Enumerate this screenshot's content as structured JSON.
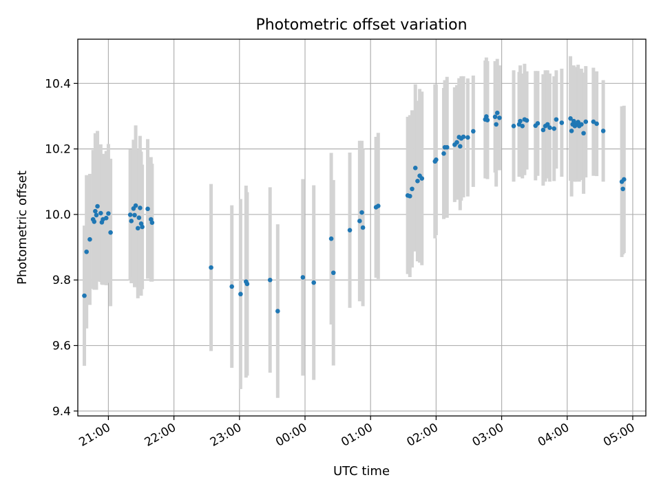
{
  "chart_data": {
    "type": "scatter",
    "title": "Photometric offset variation",
    "xlabel": "UTC time",
    "ylabel": "Photometric offset",
    "xlim": [
      "20:32",
      "05:12"
    ],
    "ylim": [
      9.385,
      10.535
    ],
    "grid": true,
    "x_ticks": [
      "21:00",
      "22:00",
      "23:00",
      "00:00",
      "01:00",
      "02:00",
      "03:00",
      "04:00",
      "05:00"
    ],
    "y_ticks": [
      "9.4",
      "9.6",
      "9.8",
      "10.0",
      "10.2",
      "10.4"
    ],
    "colors": {
      "marker": "#1f77b4",
      "errorbar": "#d3d3d3",
      "grid": "#b0b0b0"
    },
    "series": [
      {
        "points": [
          {
            "t": "20:38",
            "y": 9.752,
            "err": 0.214
          },
          {
            "t": "20:40",
            "y": 9.886,
            "err": 0.234
          },
          {
            "t": "20:43",
            "y": 9.924,
            "err": 0.2
          },
          {
            "t": "20:46",
            "y": 9.985,
            "err": 0.212
          },
          {
            "t": "20:47",
            "y": 9.978,
            "err": 0.208
          },
          {
            "t": "20:48",
            "y": 10.01,
            "err": 0.238
          },
          {
            "t": "20:49",
            "y": 9.998,
            "err": 0.228
          },
          {
            "t": "20:50",
            "y": 10.025,
            "err": 0.23
          },
          {
            "t": "20:53",
            "y": 10.004,
            "err": 0.21
          },
          {
            "t": "20:54",
            "y": 9.976,
            "err": 0.19
          },
          {
            "t": "20:55",
            "y": 9.985,
            "err": 0.2
          },
          {
            "t": "20:58",
            "y": 9.989,
            "err": 0.205
          },
          {
            "t": "21:00",
            "y": 10.003,
            "err": 0.212
          },
          {
            "t": "21:02",
            "y": 9.945,
            "err": 0.225
          },
          {
            "t": "21:20",
            "y": 9.999,
            "err": 0.2
          },
          {
            "t": "21:21",
            "y": 9.98,
            "err": 0.19
          },
          {
            "t": "21:23",
            "y": 10.018,
            "err": 0.21
          },
          {
            "t": "21:24",
            "y": 9.998,
            "err": 0.22
          },
          {
            "t": "21:25",
            "y": 10.027,
            "err": 0.245
          },
          {
            "t": "21:27",
            "y": 9.958,
            "err": 0.214
          },
          {
            "t": "21:28",
            "y": 9.99,
            "err": 0.21
          },
          {
            "t": "21:29",
            "y": 10.02,
            "err": 0.22
          },
          {
            "t": "21:30",
            "y": 9.972,
            "err": 0.22
          },
          {
            "t": "21:31",
            "y": 9.962,
            "err": 0.19
          },
          {
            "t": "21:36",
            "y": 10.017,
            "err": 0.213
          },
          {
            "t": "21:39",
            "y": 9.985,
            "err": 0.19
          },
          {
            "t": "21:40",
            "y": 9.975,
            "err": 0.18
          },
          {
            "t": "22:34",
            "y": 9.838,
            "err": 0.255
          },
          {
            "t": "22:53",
            "y": 9.78,
            "err": 0.248
          },
          {
            "t": "23:01",
            "y": 9.757,
            "err": 0.29
          },
          {
            "t": "23:06",
            "y": 9.795,
            "err": 0.293
          },
          {
            "t": "23:07",
            "y": 9.788,
            "err": 0.28
          },
          {
            "t": "23:28",
            "y": 9.8,
            "err": 0.283
          },
          {
            "t": "23:35",
            "y": 9.705,
            "err": 0.265
          },
          {
            "t": "23:58",
            "y": 9.808,
            "err": 0.3
          },
          {
            "t": "00:08",
            "y": 9.792,
            "err": 0.297
          },
          {
            "t": "00:24",
            "y": 9.926,
            "err": 0.262
          },
          {
            "t": "00:26",
            "y": 9.822,
            "err": 0.283
          },
          {
            "t": "00:41",
            "y": 9.952,
            "err": 0.237
          },
          {
            "t": "00:50",
            "y": 9.98,
            "err": 0.245
          },
          {
            "t": "00:52",
            "y": 10.006,
            "err": 0.219
          },
          {
            "t": "00:53",
            "y": 9.96,
            "err": 0.24
          },
          {
            "t": "01:05",
            "y": 10.022,
            "err": 0.215
          },
          {
            "t": "01:07",
            "y": 10.026,
            "err": 0.223
          },
          {
            "t": "01:34",
            "y": 10.058,
            "err": 0.24
          },
          {
            "t": "01:36",
            "y": 10.056,
            "err": 0.247
          },
          {
            "t": "01:38",
            "y": 10.078,
            "err": 0.24
          },
          {
            "t": "01:41",
            "y": 10.142,
            "err": 0.255
          },
          {
            "t": "01:43",
            "y": 10.102,
            "err": 0.245
          },
          {
            "t": "01:45",
            "y": 10.118,
            "err": 0.265
          },
          {
            "t": "01:47",
            "y": 10.11,
            "err": 0.265
          },
          {
            "t": "01:59",
            "y": 10.162,
            "err": 0.235
          },
          {
            "t": "02:00",
            "y": 10.167,
            "err": 0.23
          },
          {
            "t": "02:07",
            "y": 10.186,
            "err": 0.2
          },
          {
            "t": "02:08",
            "y": 10.205,
            "err": 0.205
          },
          {
            "t": "02:10",
            "y": 10.205,
            "err": 0.215
          },
          {
            "t": "02:17",
            "y": 10.213,
            "err": 0.175
          },
          {
            "t": "02:19",
            "y": 10.22,
            "err": 0.175
          },
          {
            "t": "02:21",
            "y": 10.236,
            "err": 0.18
          },
          {
            "t": "02:22",
            "y": 10.208,
            "err": 0.195
          },
          {
            "t": "02:23",
            "y": 10.232,
            "err": 0.19
          },
          {
            "t": "02:25",
            "y": 10.237,
            "err": 0.185
          },
          {
            "t": "02:29",
            "y": 10.235,
            "err": 0.18
          },
          {
            "t": "02:34",
            "y": 10.254,
            "err": 0.17
          },
          {
            "t": "02:45",
            "y": 10.29,
            "err": 0.18
          },
          {
            "t": "02:46",
            "y": 10.299,
            "err": 0.18
          },
          {
            "t": "02:47",
            "y": 10.288,
            "err": 0.18
          },
          {
            "t": "02:54",
            "y": 10.298,
            "err": 0.17
          },
          {
            "t": "02:55",
            "y": 10.275,
            "err": 0.19
          },
          {
            "t": "02:56",
            "y": 10.31,
            "err": 0.165
          },
          {
            "t": "02:58",
            "y": 10.295,
            "err": 0.16
          },
          {
            "t": "03:11",
            "y": 10.27,
            "err": 0.17
          },
          {
            "t": "03:16",
            "y": 10.275,
            "err": 0.16
          },
          {
            "t": "03:17",
            "y": 10.285,
            "err": 0.17
          },
          {
            "t": "03:19",
            "y": 10.27,
            "err": 0.16
          },
          {
            "t": "03:21",
            "y": 10.29,
            "err": 0.17
          },
          {
            "t": "03:23",
            "y": 10.287,
            "err": 0.15
          },
          {
            "t": "03:31",
            "y": 10.271,
            "err": 0.167
          },
          {
            "t": "03:33",
            "y": 10.278,
            "err": 0.16
          },
          {
            "t": "03:38",
            "y": 10.258,
            "err": 0.17
          },
          {
            "t": "03:40",
            "y": 10.27,
            "err": 0.17
          },
          {
            "t": "03:42",
            "y": 10.275,
            "err": 0.165
          },
          {
            "t": "03:44",
            "y": 10.265,
            "err": 0.165
          },
          {
            "t": "03:48",
            "y": 10.262,
            "err": 0.16
          },
          {
            "t": "03:50",
            "y": 10.29,
            "err": 0.15
          },
          {
            "t": "03:55",
            "y": 10.28,
            "err": 0.165
          },
          {
            "t": "04:03",
            "y": 10.293,
            "err": 0.19
          },
          {
            "t": "04:04",
            "y": 10.255,
            "err": 0.2
          },
          {
            "t": "04:05",
            "y": 10.275,
            "err": 0.17
          },
          {
            "t": "04:06",
            "y": 10.285,
            "err": 0.17
          },
          {
            "t": "04:07",
            "y": 10.27,
            "err": 0.17
          },
          {
            "t": "04:08",
            "y": 10.275,
            "err": 0.175
          },
          {
            "t": "04:10",
            "y": 10.282,
            "err": 0.175
          },
          {
            "t": "04:11",
            "y": 10.27,
            "err": 0.17
          },
          {
            "t": "04:13",
            "y": 10.275,
            "err": 0.17
          },
          {
            "t": "04:15",
            "y": 10.248,
            "err": 0.185
          },
          {
            "t": "04:17",
            "y": 10.283,
            "err": 0.17
          },
          {
            "t": "04:24",
            "y": 10.283,
            "err": 0.165
          },
          {
            "t": "04:27",
            "y": 10.277,
            "err": 0.16
          },
          {
            "t": "04:33",
            "y": 10.255,
            "err": 0.155
          },
          {
            "t": "04:50",
            "y": 10.1,
            "err": 0.23
          },
          {
            "t": "04:51",
            "y": 10.078,
            "err": 0.2
          },
          {
            "t": "04:52",
            "y": 10.107,
            "err": 0.225
          }
        ]
      }
    ]
  }
}
